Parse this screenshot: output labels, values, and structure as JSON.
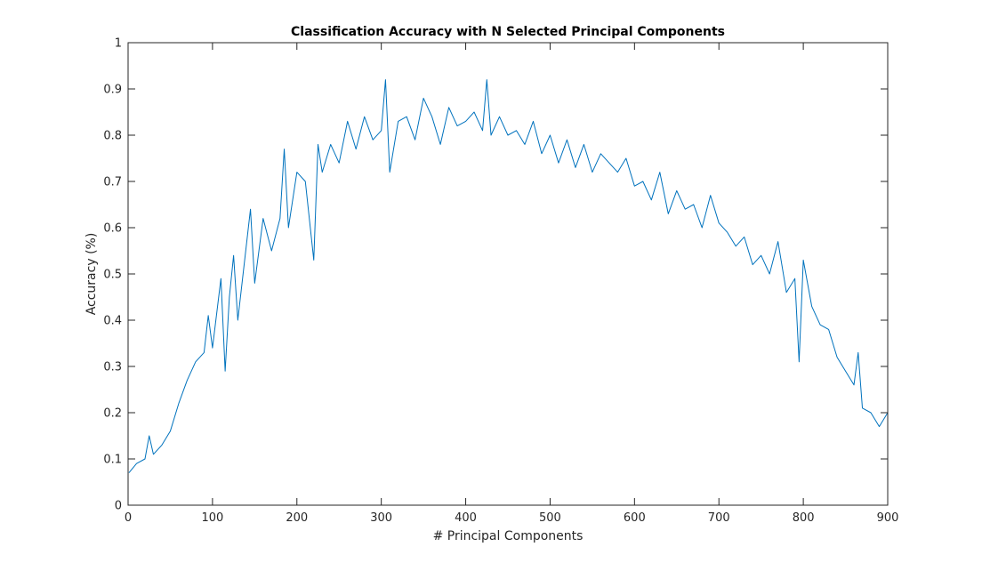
{
  "chart_data": {
    "type": "line",
    "title": "Classification Accuracy with N Selected Principal Components",
    "xlabel": "# Principal Components",
    "ylabel": "Accuracy (%)",
    "xlim": [
      0,
      900
    ],
    "ylim": [
      0,
      1
    ],
    "grid": false,
    "box": true,
    "x_ticks": [
      "0",
      "100",
      "200",
      "300",
      "400",
      "500",
      "600",
      "700",
      "800",
      "900"
    ],
    "y_ticks": [
      "0",
      "0.1",
      "0.2",
      "0.3",
      "0.4",
      "0.5",
      "0.6",
      "0.7",
      "0.8",
      "0.9",
      "1"
    ],
    "series": [
      {
        "color": "#0072BD",
        "x": [
          1,
          10,
          20,
          25,
          30,
          40,
          50,
          60,
          70,
          80,
          90,
          95,
          100,
          110,
          115,
          120,
          125,
          130,
          140,
          145,
          150,
          160,
          170,
          180,
          185,
          190,
          200,
          210,
          220,
          225,
          230,
          240,
          250,
          260,
          270,
          280,
          290,
          300,
          305,
          310,
          320,
          330,
          340,
          350,
          360,
          370,
          380,
          390,
          400,
          410,
          420,
          425,
          430,
          440,
          450,
          460,
          470,
          480,
          490,
          500,
          510,
          520,
          530,
          540,
          550,
          560,
          570,
          580,
          590,
          600,
          610,
          620,
          630,
          640,
          650,
          660,
          670,
          680,
          690,
          700,
          710,
          720,
          730,
          740,
          750,
          760,
          770,
          780,
          790,
          795,
          800,
          810,
          820,
          830,
          840,
          850,
          860,
          865,
          870,
          880,
          890,
          900
        ],
        "y": [
          0.07,
          0.09,
          0.1,
          0.15,
          0.11,
          0.13,
          0.16,
          0.22,
          0.27,
          0.31,
          0.33,
          0.41,
          0.34,
          0.49,
          0.29,
          0.45,
          0.54,
          0.4,
          0.56,
          0.64,
          0.48,
          0.62,
          0.55,
          0.62,
          0.77,
          0.6,
          0.72,
          0.7,
          0.53,
          0.78,
          0.72,
          0.78,
          0.74,
          0.83,
          0.77,
          0.84,
          0.79,
          0.81,
          0.92,
          0.72,
          0.83,
          0.84,
          0.79,
          0.88,
          0.84,
          0.78,
          0.86,
          0.82,
          0.83,
          0.85,
          0.81,
          0.92,
          0.8,
          0.84,
          0.8,
          0.81,
          0.78,
          0.83,
          0.76,
          0.8,
          0.74,
          0.79,
          0.73,
          0.78,
          0.72,
          0.76,
          0.74,
          0.72,
          0.75,
          0.69,
          0.7,
          0.66,
          0.72,
          0.63,
          0.68,
          0.64,
          0.65,
          0.6,
          0.67,
          0.61,
          0.59,
          0.56,
          0.58,
          0.52,
          0.54,
          0.5,
          0.57,
          0.46,
          0.49,
          0.31,
          0.53,
          0.43,
          0.39,
          0.38,
          0.32,
          0.29,
          0.26,
          0.33,
          0.21,
          0.2,
          0.17,
          0.2
        ]
      }
    ]
  }
}
